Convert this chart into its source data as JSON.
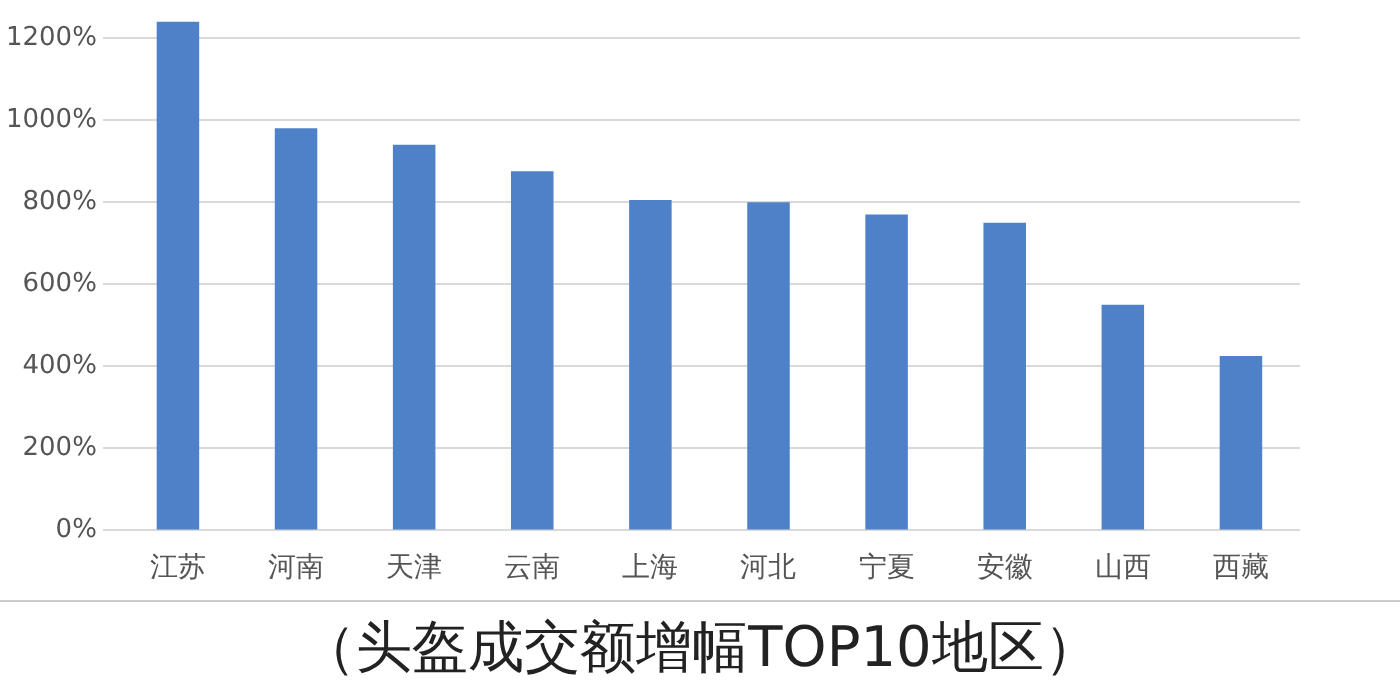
{
  "chart_data": {
    "type": "bar",
    "title": "（头盔成交额增幅TOP10地区）",
    "categories": [
      "江苏",
      "河南",
      "天津",
      "云南",
      "上海",
      "河北",
      "宁夏",
      "安徽",
      "山西",
      "西藏"
    ],
    "values": [
      1240,
      980,
      940,
      875,
      805,
      800,
      770,
      750,
      550,
      425
    ],
    "color": "#4f81c9",
    "ylim": [
      0,
      1240
    ],
    "yticks": [
      {
        "value": 0,
        "label": "0%"
      },
      {
        "value": 200,
        "label": "200%"
      },
      {
        "value": 400,
        "label": "400%"
      },
      {
        "value": 600,
        "label": "600%"
      },
      {
        "value": 800,
        "label": "800%"
      },
      {
        "value": 1000,
        "label": "1000%"
      },
      {
        "value": 1200,
        "label": "1200%"
      }
    ],
    "grid": "y"
  }
}
